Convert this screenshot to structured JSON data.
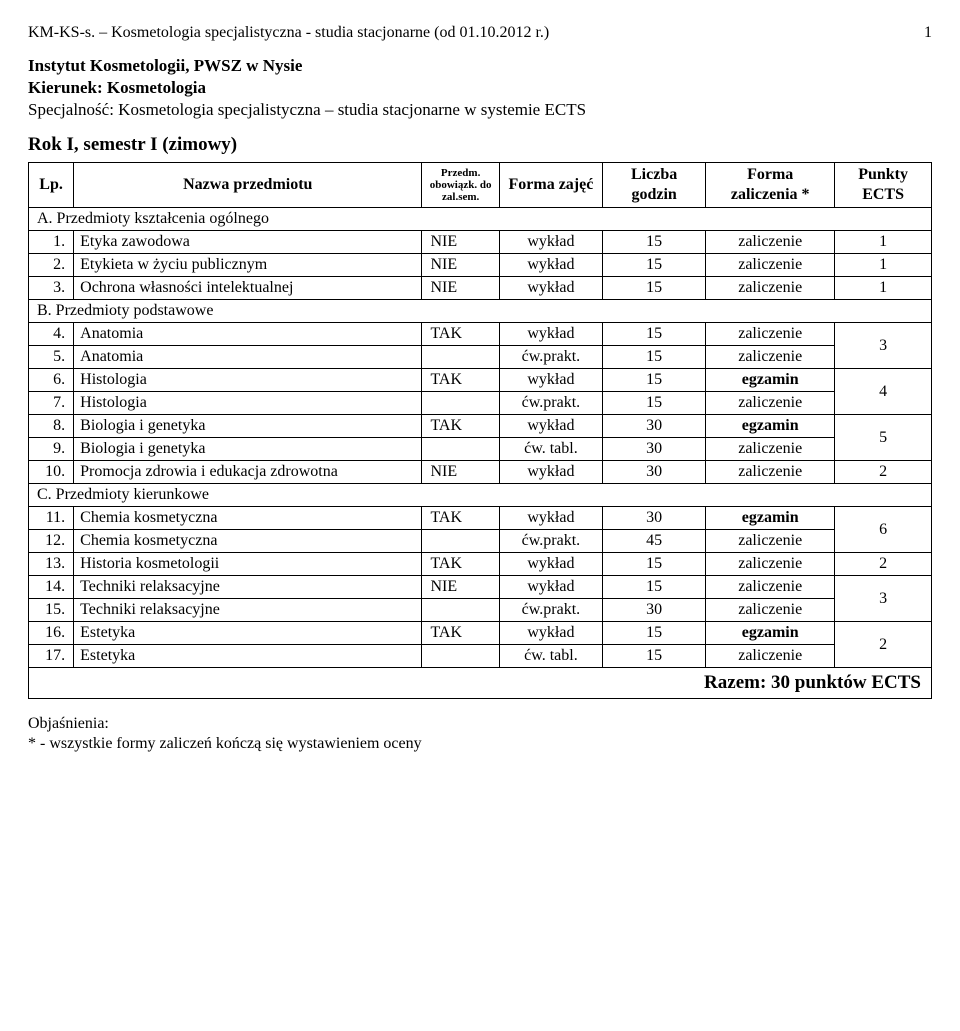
{
  "header": {
    "left": "KM-KS-s. – Kosmetologia specjalistyczna - studia stacjonarne (od 01.10.2012 r.)",
    "page": "1"
  },
  "intro": {
    "l1": "Instytut Kosmetologii, PWSZ w Nysie",
    "l2": "Kierunek: Kosmetologia",
    "l3": "Specjalność: Kosmetologia specjalistyczna – studia stacjonarne w systemie ECTS"
  },
  "semester_title": "Rok I, semestr I (zimowy)",
  "columns": {
    "lp": "Lp.",
    "name": "Nazwa przedmiotu",
    "ob": "Przedm. obowiązk. do zal.sem.",
    "form": "Forma zajęć",
    "hours": "Liczba godzin",
    "fz": "Forma zaliczenia *",
    "ects": "Punkty ECTS"
  },
  "sections": [
    {
      "title": "A. Przedmioty kształcenia ogólnego",
      "rows": [
        {
          "lp": "1.",
          "name": "Etyka zawodowa",
          "ob": "NIE",
          "form": "wykład",
          "hrs": "15",
          "fz": "zaliczenie",
          "ects": "1"
        },
        {
          "lp": "2.",
          "name": "Etykieta w życiu publicznym",
          "ob": "NIE",
          "form": "wykład",
          "hrs": "15",
          "fz": "zaliczenie",
          "ects": "1"
        },
        {
          "lp": "3.",
          "name": "Ochrona własności intelektualnej",
          "ob": "NIE",
          "form": "wykład",
          "hrs": "15",
          "fz": "zaliczenie",
          "ects": "1"
        }
      ]
    },
    {
      "title": "B. Przedmioty podstawowe",
      "rows": [
        {
          "lp": "4.",
          "name": "Anatomia",
          "ob": "TAK",
          "form": "wykład",
          "hrs": "15",
          "fz": "zaliczenie",
          "ects": "3",
          "span": 2
        },
        {
          "lp": "5.",
          "name": "Anatomia",
          "ob": "",
          "form": "ćw.prakt.",
          "hrs": "15",
          "fz": "zaliczenie"
        },
        {
          "lp": "6.",
          "name": "Histologia",
          "ob": "TAK",
          "form": "wykład",
          "hrs": "15",
          "fz": "egzamin",
          "fz_bold": true,
          "ects": "4",
          "span": 2
        },
        {
          "lp": "7.",
          "name": "Histologia",
          "ob": "",
          "form": "ćw.prakt.",
          "hrs": "15",
          "fz": "zaliczenie"
        },
        {
          "lp": "8.",
          "name": "Biologia i genetyka",
          "ob": "TAK",
          "form": "wykład",
          "hrs": "30",
          "fz": "egzamin",
          "fz_bold": true,
          "ects": "5",
          "span": 2
        },
        {
          "lp": "9.",
          "name": "Biologia i genetyka",
          "ob": "",
          "form": "ćw. tabl.",
          "hrs": "30",
          "fz": "zaliczenie"
        },
        {
          "lp": "10.",
          "name": "Promocja zdrowia i edukacja zdrowotna",
          "ob": "NIE",
          "form": "wykład",
          "hrs": "30",
          "fz": "zaliczenie",
          "ects": "2"
        }
      ]
    },
    {
      "title": "C. Przedmioty kierunkowe",
      "rows": [
        {
          "lp": "11.",
          "name": "Chemia kosmetyczna",
          "ob": "TAK",
          "form": "wykład",
          "hrs": "30",
          "fz": "egzamin",
          "fz_bold": true,
          "ects": "6",
          "span": 2
        },
        {
          "lp": "12.",
          "name": "Chemia kosmetyczna",
          "ob": "",
          "form": "ćw.prakt.",
          "hrs": "45",
          "fz": "zaliczenie"
        },
        {
          "lp": "13.",
          "name": "Historia kosmetologii",
          "ob": "TAK",
          "form": "wykład",
          "hrs": "15",
          "fz": "zaliczenie",
          "ects": "2"
        },
        {
          "lp": "14.",
          "name": "Techniki relaksacyjne",
          "ob": "NIE",
          "form": "wykład",
          "hrs": "15",
          "fz": "zaliczenie",
          "ects": "3",
          "span": 2
        },
        {
          "lp": "15.",
          "name": "Techniki relaksacyjne",
          "ob": "",
          "form": "ćw.prakt.",
          "hrs": "30",
          "fz": "zaliczenie"
        },
        {
          "lp": "16.",
          "name": "Estetyka",
          "ob": "TAK",
          "form": "wykład",
          "hrs": "15",
          "fz": "egzamin",
          "fz_bold": true,
          "ects": "2",
          "span": 2
        },
        {
          "lp": "17.",
          "name": "Estetyka",
          "ob": "",
          "form": "ćw. tabl.",
          "hrs": "15",
          "fz": "zaliczenie"
        }
      ]
    }
  ],
  "total": "Razem: 30 punktów ECTS",
  "explanation": {
    "title": "Objaśnienia:",
    "line": "* - wszystkie formy zaliczeń kończą się wystawieniem oceny"
  }
}
